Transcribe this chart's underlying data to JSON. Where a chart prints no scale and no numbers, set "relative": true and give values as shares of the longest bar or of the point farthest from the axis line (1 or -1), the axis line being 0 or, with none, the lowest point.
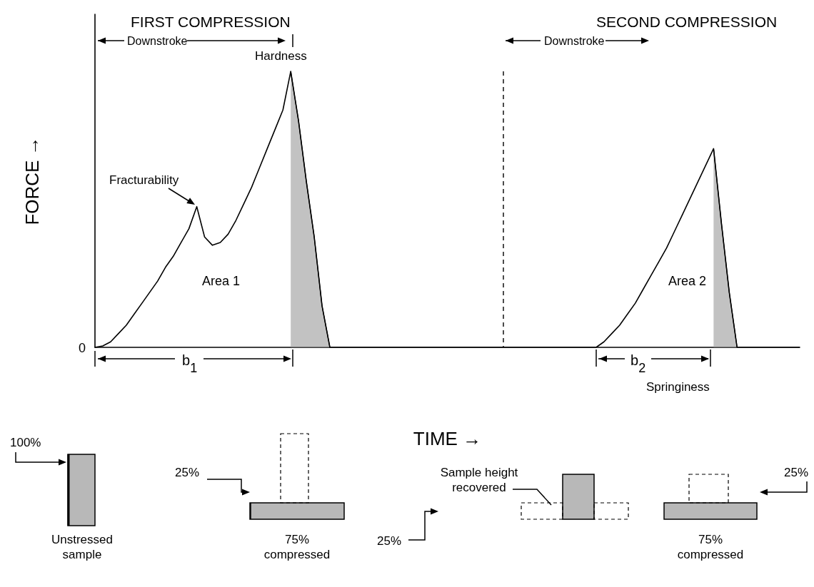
{
  "chart_data": {
    "type": "line",
    "relative": true,
    "marker": "none",
    "xlabel": "TIME →",
    "ylabel": "FORCE →",
    "categories": [
      null,
      null,
      null,
      null,
      null,
      null,
      null,
      null,
      null,
      null,
      null,
      null,
      null,
      null,
      null,
      null,
      null,
      null,
      null,
      null,
      null,
      null,
      null,
      null,
      null,
      null,
      null,
      null,
      null,
      null,
      null,
      null,
      null,
      null,
      null,
      null,
      null,
      null,
      null,
      null,
      null,
      null,
      null,
      null,
      null,
      null,
      null,
      null,
      null,
      null,
      null,
      null,
      null,
      null,
      null,
      null,
      null,
      null,
      null,
      null,
      null,
      null,
      null,
      null,
      null,
      null,
      null,
      null,
      null,
      null,
      null,
      null,
      null,
      null,
      null,
      null,
      null,
      null,
      null,
      null,
      null,
      null,
      null,
      null,
      null,
      null,
      null,
      null,
      null,
      null,
      null
    ],
    "series": [
      {
        "color": "#000000",
        "values": [
          0,
          0.005,
          0.02,
          0.05,
          0.08,
          0.12,
          0.16,
          0.2,
          0.24,
          0.29,
          0.33,
          0.38,
          0.43,
          0.51,
          0.4,
          0.37,
          0.38,
          0.41,
          0.46,
          0.52,
          0.58,
          0.65,
          0.72,
          0.79,
          0.86,
          1,
          0.82,
          0.6,
          0.4,
          0.15,
          0,
          0,
          0,
          0,
          0,
          0,
          0,
          0,
          0,
          0,
          0,
          0,
          0,
          0,
          0,
          0,
          0,
          0,
          0,
          0,
          0,
          0,
          0,
          0,
          0,
          0,
          0,
          0,
          0,
          0,
          0,
          0,
          0,
          0,
          0,
          0.02,
          0.05,
          0.08,
          0.12,
          0.16,
          0.21,
          0.26,
          0.31,
          0.36,
          0.42,
          0.48,
          0.54,
          0.6,
          0.66,
          0.72,
          0.45,
          0.2,
          0,
          0,
          0,
          0,
          0,
          0,
          0,
          0,
          0
        ]
      },
      {
        "type": "area",
        "color": "#9a9a9a",
        "values": [
          null,
          null,
          null,
          null,
          null,
          null,
          null,
          null,
          null,
          null,
          null,
          null,
          null,
          null,
          null,
          null,
          null,
          null,
          null,
          null,
          null,
          null,
          null,
          null,
          null,
          1,
          0.82,
          0.6,
          0.4,
          0.15,
          0,
          null,
          null,
          null,
          null,
          null,
          null,
          null,
          null,
          null,
          null,
          null,
          null,
          null,
          null,
          null,
          null,
          null,
          null,
          null,
          null,
          null,
          null,
          null,
          null,
          null,
          null,
          null,
          null,
          null,
          null,
          null,
          null,
          null,
          null,
          null,
          null,
          null,
          null,
          null,
          null,
          null,
          null,
          null,
          null,
          null,
          null,
          null,
          null,
          0.72,
          0.45,
          0.2,
          0,
          null,
          null,
          null,
          null,
          null,
          null,
          null,
          null
        ]
      }
    ],
    "annotations": [
      "FIRST COMPRESSION",
      "SECOND COMPRESSION",
      "Downstroke",
      "Hardness",
      "Fracturability",
      "Area 1",
      "Area 2",
      "b$_{1}$",
      "Downstroke",
      "b$_{2}$",
      "Springiness",
      "0",
      "100%",
      "Unstressed sample",
      "25%",
      "75% compressed",
      "Sample height recovered",
      "25%",
      "25%",
      "75% compressed"
    ]
  }
}
